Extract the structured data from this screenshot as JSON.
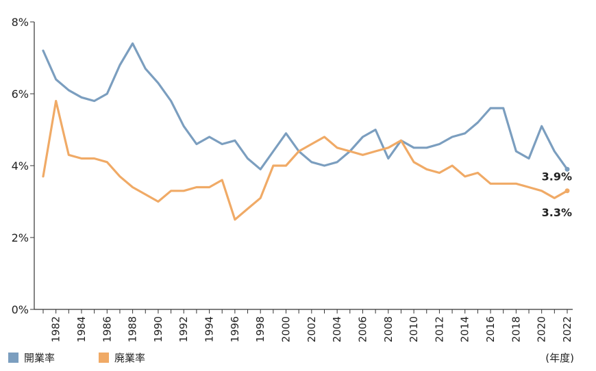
{
  "chart_data": {
    "type": "line",
    "title": "",
    "xlabel": "",
    "ylabel": "",
    "x_unit_label": "(年度)",
    "x": [
      1981,
      1982,
      1983,
      1984,
      1985,
      1986,
      1987,
      1988,
      1989,
      1990,
      1991,
      1992,
      1993,
      1994,
      1995,
      1996,
      1997,
      1998,
      1999,
      2000,
      2001,
      2002,
      2003,
      2004,
      2005,
      2006,
      2007,
      2008,
      2009,
      2010,
      2011,
      2012,
      2013,
      2014,
      2015,
      2016,
      2017,
      2018,
      2019,
      2020,
      2021,
      2022
    ],
    "x_tick_labels": [
      "1982",
      "1984",
      "1986",
      "1988",
      "1990",
      "1992",
      "1994",
      "1996",
      "1998",
      "2000",
      "2002",
      "2004",
      "2006",
      "2008",
      "2010",
      "2012",
      "2014",
      "2016",
      "2018",
      "2020",
      "2022"
    ],
    "ylim": [
      0,
      8
    ],
    "y_ticks": [
      0,
      2,
      4,
      6,
      8
    ],
    "y_tick_labels": [
      "0%",
      "2%",
      "4%",
      "6%",
      "8%"
    ],
    "grid": false,
    "legend_position": "bottom-left",
    "series": [
      {
        "name": "開業率",
        "color": "#7b9ebf",
        "values": [
          7.2,
          6.4,
          6.1,
          5.9,
          5.8,
          6.0,
          6.8,
          7.4,
          6.7,
          6.3,
          5.8,
          5.1,
          4.6,
          4.8,
          4.6,
          4.7,
          4.2,
          3.9,
          4.4,
          4.9,
          4.4,
          4.1,
          4.0,
          4.1,
          4.4,
          4.8,
          5.0,
          4.2,
          4.7,
          4.5,
          4.5,
          4.6,
          4.8,
          4.9,
          5.2,
          5.6,
          5.6,
          4.4,
          4.2,
          5.1,
          4.4,
          3.9
        ],
        "end_label": "3.9%"
      },
      {
        "name": "廃業率",
        "color": "#f0aa66",
        "values": [
          3.7,
          5.8,
          4.3,
          4.2,
          4.2,
          4.1,
          3.7,
          3.4,
          3.2,
          3.0,
          3.3,
          3.3,
          3.4,
          3.4,
          3.6,
          2.5,
          2.8,
          3.1,
          4.0,
          4.0,
          4.4,
          4.6,
          4.8,
          4.5,
          4.4,
          4.3,
          4.4,
          4.5,
          4.7,
          4.1,
          3.9,
          3.8,
          4.0,
          3.7,
          3.8,
          3.5,
          3.5,
          3.5,
          3.4,
          3.3,
          3.1,
          3.3
        ],
        "end_label": "3.3%"
      }
    ]
  }
}
